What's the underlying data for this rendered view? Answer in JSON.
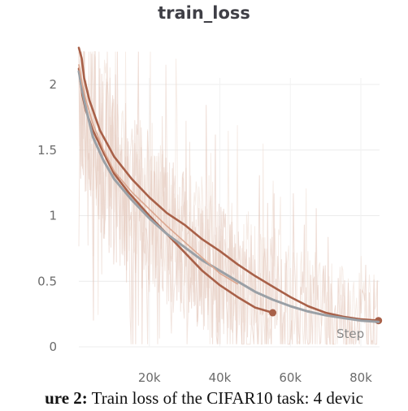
{
  "chart_data": {
    "type": "line",
    "title": "train_loss",
    "xlabel": "Step",
    "ylabel": "",
    "xlim": [
      0,
      86000
    ],
    "ylim": [
      0,
      2.3
    ],
    "x_ticks": [
      20000,
      40000,
      60000,
      80000
    ],
    "x_tick_labels": [
      "20k",
      "40k",
      "60k",
      "80k"
    ],
    "y_ticks": [
      0,
      0.5,
      1,
      1.5,
      2
    ],
    "y_tick_labels": [
      "0",
      "0.5",
      "1",
      "1.5",
      "2"
    ],
    "grid": "horizontal",
    "legend": "none",
    "series": [
      {
        "color": "#a86048",
        "x": [
          0,
          1000,
          2000,
          4000,
          7000,
          10000,
          14000,
          20000,
          25000,
          30000,
          35000,
          40000,
          45000,
          50000,
          55000
        ],
        "values": [
          2.12,
          1.92,
          1.8,
          1.65,
          1.48,
          1.32,
          1.18,
          1.0,
          0.86,
          0.72,
          0.58,
          0.47,
          0.38,
          0.3,
          0.26
        ]
      },
      {
        "color": "#a86048",
        "x": [
          0,
          800,
          1500,
          3000,
          6000,
          10000,
          15000,
          20000,
          25000,
          30000,
          35000,
          40000,
          45000,
          50000,
          55000,
          60000,
          65000,
          70000,
          75000,
          80000,
          85000
        ],
        "values": [
          2.28,
          2.2,
          2.05,
          1.88,
          1.65,
          1.45,
          1.28,
          1.14,
          1.02,
          0.93,
          0.82,
          0.73,
          0.63,
          0.54,
          0.46,
          0.38,
          0.31,
          0.26,
          0.23,
          0.21,
          0.2
        ]
      },
      {
        "color": "#9aa0a6",
        "x": [
          0,
          1000,
          2000,
          4000,
          7000,
          10000,
          15000,
          20000,
          25000,
          30000,
          35000,
          40000,
          45000,
          50000,
          55000,
          60000,
          65000,
          70000,
          75000,
          80000,
          85000
        ],
        "values": [
          2.1,
          1.95,
          1.82,
          1.6,
          1.42,
          1.28,
          1.12,
          0.98,
          0.86,
          0.76,
          0.66,
          0.58,
          0.5,
          0.42,
          0.36,
          0.31,
          0.27,
          0.24,
          0.22,
          0.2,
          0.19
        ]
      },
      {
        "color": "#dba790",
        "x": [
          0,
          1000,
          2000,
          4000,
          7000,
          10000,
          15000,
          20000,
          25000,
          30000,
          35000,
          40000,
          45000
        ],
        "values": [
          2.15,
          2.0,
          1.88,
          1.7,
          1.5,
          1.34,
          1.18,
          1.05,
          0.92,
          0.8,
          0.68,
          0.56,
          0.48
        ]
      }
    ]
  },
  "caption": {
    "prefix": "ure 2:",
    "text": " Train loss of the CIFAR10 task: 4 devic"
  }
}
